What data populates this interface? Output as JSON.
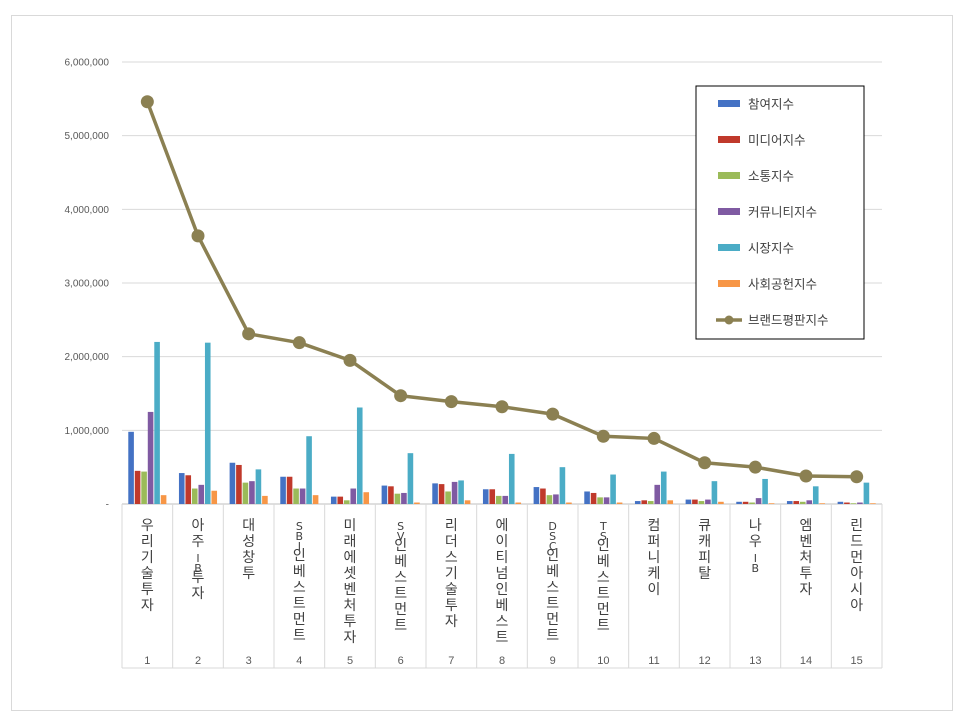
{
  "chart_data": {
    "type": "bar",
    "title": "",
    "xlabel": "",
    "ylabel": "",
    "ylim": [
      0,
      6000000
    ],
    "yticks": [
      "-",
      "1,000,000",
      "2,000,000",
      "3,000,000",
      "4,000,000",
      "5,000,000",
      "6,000,000"
    ],
    "ranks": [
      "1",
      "2",
      "3",
      "4",
      "5",
      "6",
      "7",
      "8",
      "9",
      "10",
      "11",
      "12",
      "13",
      "14",
      "15"
    ],
    "categories": [
      "우리기술투자",
      "아주IB투자",
      "대성창투",
      "SBI인베스트먼트",
      "미래에셋벤처투자",
      "SV인베스트먼트",
      "리더스기술투자",
      "에이티넘인베스트",
      "DSC인베스트먼트",
      "TS인베스트먼트",
      "컴퍼니케이",
      "큐캐피탈",
      "나우IB",
      "엠벤처투자",
      "린드먼아시아"
    ],
    "grid": true,
    "legend_position": "right",
    "series": [
      {
        "name": "참여지수",
        "type": "bar",
        "color": "#4472c4",
        "values": [
          980000,
          420000,
          560000,
          370000,
          100000,
          250000,
          280000,
          200000,
          230000,
          170000,
          40000,
          60000,
          30000,
          40000,
          30000
        ]
      },
      {
        "name": "미디어지수",
        "type": "bar",
        "color": "#c0392b",
        "values": [
          450000,
          390000,
          530000,
          370000,
          100000,
          240000,
          270000,
          200000,
          210000,
          150000,
          50000,
          60000,
          30000,
          40000,
          20000
        ]
      },
      {
        "name": "소통지수",
        "type": "bar",
        "color": "#9bbb59",
        "values": [
          440000,
          210000,
          290000,
          210000,
          50000,
          140000,
          170000,
          110000,
          120000,
          90000,
          40000,
          40000,
          20000,
          30000,
          10000
        ]
      },
      {
        "name": "커뮤니티지수",
        "type": "bar",
        "color": "#7f5aa2",
        "values": [
          1250000,
          260000,
          310000,
          210000,
          210000,
          150000,
          300000,
          110000,
          130000,
          90000,
          260000,
          60000,
          80000,
          50000,
          20000
        ]
      },
      {
        "name": "시장지수",
        "type": "bar",
        "color": "#4bacc6",
        "values": [
          2200000,
          2190000,
          470000,
          920000,
          1310000,
          690000,
          320000,
          680000,
          500000,
          400000,
          440000,
          310000,
          340000,
          240000,
          290000
        ]
      },
      {
        "name": "사회공헌지수",
        "type": "bar",
        "color": "#f79646",
        "values": [
          120000,
          180000,
          110000,
          120000,
          160000,
          20000,
          50000,
          20000,
          20000,
          20000,
          50000,
          30000,
          10000,
          10000,
          10000
        ]
      },
      {
        "name": "브랜드평판지수",
        "type": "line",
        "color": "#8b8052",
        "values": [
          5460000,
          3640000,
          2310000,
          2190000,
          1950000,
          1470000,
          1390000,
          1320000,
          1220000,
          920000,
          890000,
          560000,
          500000,
          380000,
          370000
        ]
      }
    ]
  }
}
